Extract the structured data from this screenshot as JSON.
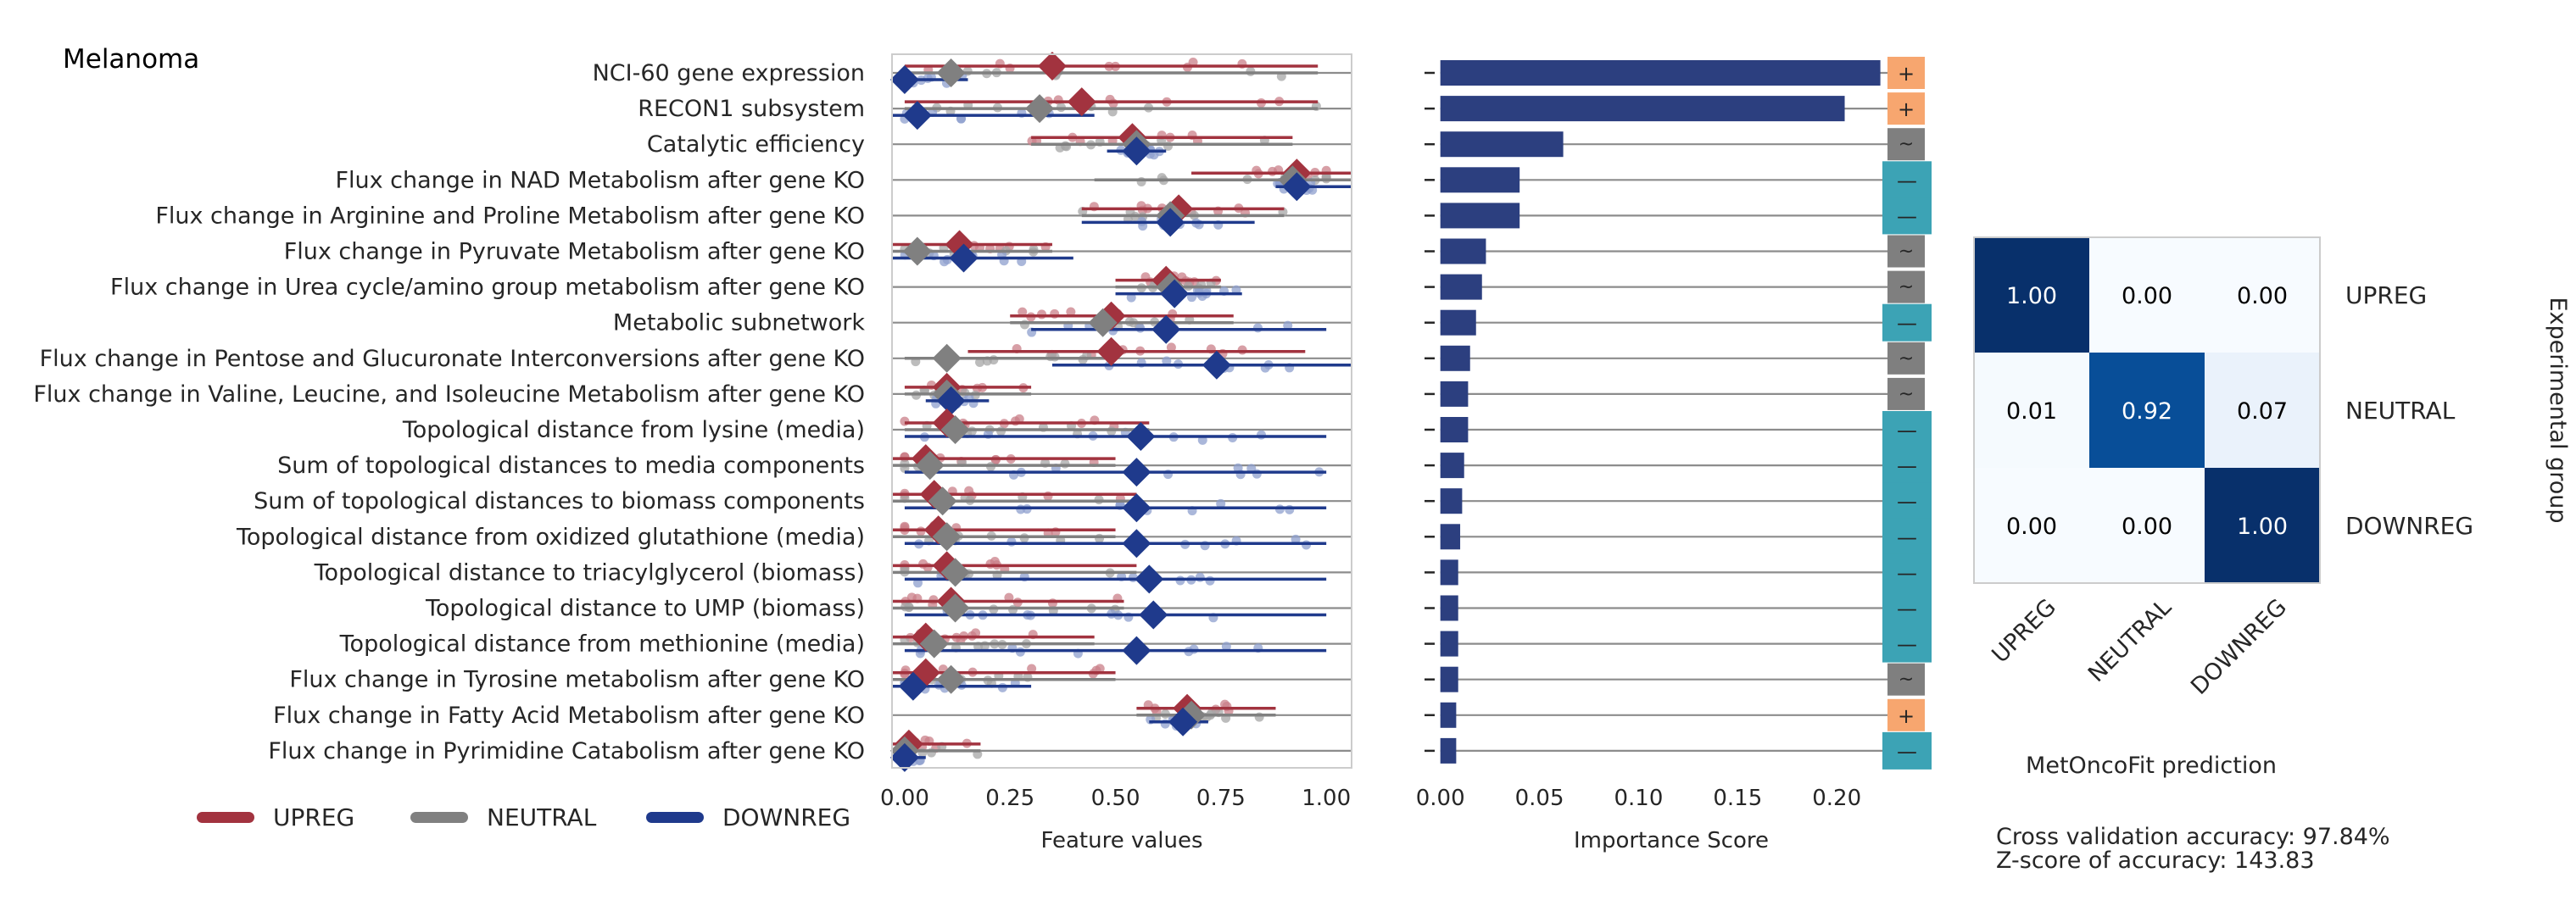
{
  "figure_title": "Melanoma",
  "legend": [
    {
      "label": "UPREG",
      "color": "#a2333f"
    },
    {
      "label": "NEUTRAL",
      "color": "#808080"
    },
    {
      "label": "DOWNREG",
      "color": "#1f3a8c"
    }
  ],
  "stats": {
    "line1": "Cross validation accuracy: 97.84%",
    "line2": "Z-score of accuracy: 143.83"
  },
  "chart_data": [
    {
      "type": "scatter",
      "title": "",
      "xlabel": "Feature values",
      "ylabel": "",
      "xlim": [
        -0.03,
        1.06
      ],
      "xticks": [
        "0.00",
        "0.25",
        "0.50",
        "0.75",
        "1.00"
      ],
      "xtick_values": [
        0,
        0.25,
        0.5,
        0.75,
        1.0
      ],
      "categories": [
        "NCI-60 gene expression",
        "RECON1 subsystem",
        "Catalytic efficiency",
        "Flux change in NAD Metabolism after gene KO",
        "Flux change in Arginine and Proline Metabolism after gene KO",
        "Flux change in Pyruvate Metabolism after gene KO",
        "Flux change in Urea cycle/amino group metabolism after gene KO",
        "Metabolic subnetwork",
        "Flux change in Pentose and Glucuronate Interconversions after gene KO",
        "Flux change in Valine, Leucine, and Isoleucine Metabolism after gene KO",
        "Topological distance from lysine (media)",
        "Sum of topological distances to media components",
        "Sum of topological distances to biomass components",
        "Topological distance from oxidized glutathione (media)",
        "Topological distance to triacylglycerol (biomass)",
        "Topological distance to UMP (biomass)",
        "Topological distance from methionine (media)",
        "Flux change in Tyrosine metabolism after gene KO",
        "Flux change in Fatty Acid Metabolism after gene KO",
        "Flux change in Pyrimidine Catabolism after gene KO"
      ],
      "series": [
        {
          "name": "UPREG",
          "color": "#a2333f",
          "means": [
            0.35,
            0.42,
            0.54,
            0.93,
            0.65,
            0.13,
            0.62,
            0.49,
            0.49,
            0.1,
            0.1,
            0.05,
            0.07,
            0.08,
            0.1,
            0.11,
            0.05,
            0.05,
            0.67,
            0.01
          ],
          "range": [
            [
              0.0,
              0.98
            ],
            [
              0.0,
              0.98
            ],
            [
              0.3,
              0.92
            ],
            [
              0.68,
              1.06
            ],
            [
              0.42,
              0.9
            ],
            [
              -0.03,
              0.35
            ],
            [
              0.5,
              0.75
            ],
            [
              0.25,
              0.78
            ],
            [
              0.15,
              0.95
            ],
            [
              0.0,
              0.3
            ],
            [
              0.0,
              0.58
            ],
            [
              -0.03,
              0.5
            ],
            [
              -0.03,
              0.55
            ],
            [
              -0.03,
              0.5
            ],
            [
              -0.03,
              0.55
            ],
            [
              -0.03,
              0.52
            ],
            [
              -0.03,
              0.45
            ],
            [
              -0.03,
              0.5
            ],
            [
              0.55,
              0.88
            ],
            [
              -0.03,
              0.18
            ]
          ]
        },
        {
          "name": "NEUTRAL",
          "color": "#808080",
          "means": [
            0.11,
            0.32,
            0.55,
            0.92,
            0.63,
            0.03,
            0.63,
            0.47,
            0.1,
            0.1,
            0.12,
            0.06,
            0.09,
            0.1,
            0.12,
            0.12,
            0.07,
            0.11,
            0.68,
            0.0
          ],
          "range": [
            [
              0.0,
              0.98
            ],
            [
              0.0,
              0.98
            ],
            [
              0.3,
              0.92
            ],
            [
              0.45,
              1.06
            ],
            [
              0.42,
              0.9
            ],
            [
              -0.03,
              0.35
            ],
            [
              0.5,
              0.75
            ],
            [
              0.25,
              0.78
            ],
            [
              0.0,
              0.5
            ],
            [
              0.0,
              0.3
            ],
            [
              0.0,
              0.58
            ],
            [
              -0.03,
              0.5
            ],
            [
              -0.03,
              0.55
            ],
            [
              -0.03,
              0.5
            ],
            [
              -0.03,
              0.55
            ],
            [
              -0.03,
              0.52
            ],
            [
              -0.03,
              0.45
            ],
            [
              -0.03,
              0.5
            ],
            [
              0.55,
              0.88
            ],
            [
              -0.03,
              0.18
            ]
          ]
        },
        {
          "name": "DOWNREG",
          "color": "#1f3a8c",
          "means": [
            0.0,
            0.03,
            0.55,
            0.93,
            0.63,
            0.14,
            0.64,
            0.62,
            0.74,
            0.11,
            0.56,
            0.55,
            0.55,
            0.55,
            0.58,
            0.59,
            0.55,
            0.02,
            0.66,
            0.0
          ],
          "range": [
            [
              -0.03,
              0.15
            ],
            [
              -0.03,
              0.45
            ],
            [
              0.48,
              0.62
            ],
            [
              0.88,
              1.06
            ],
            [
              0.42,
              0.83
            ],
            [
              -0.03,
              0.4
            ],
            [
              0.5,
              0.8
            ],
            [
              0.3,
              1.0
            ],
            [
              0.35,
              1.06
            ],
            [
              0.05,
              0.2
            ],
            [
              0.0,
              1.0
            ],
            [
              0.0,
              1.0
            ],
            [
              0.0,
              1.0
            ],
            [
              0.0,
              1.0
            ],
            [
              0.0,
              1.0
            ],
            [
              0.0,
              1.0
            ],
            [
              0.0,
              1.0
            ],
            [
              -0.03,
              0.3
            ],
            [
              0.58,
              0.72
            ],
            [
              -0.03,
              0.05
            ]
          ]
        }
      ]
    },
    {
      "type": "bar",
      "orientation": "horizontal",
      "title": "",
      "xlabel": "Importance Score",
      "ylabel": "",
      "xlim": [
        -0.002,
        0.235
      ],
      "xticks": [
        "0.00",
        "0.05",
        "0.10",
        "0.15",
        "0.20"
      ],
      "xtick_values": [
        0,
        0.05,
        0.1,
        0.15,
        0.2
      ],
      "color": "#2c3f7f",
      "values": [
        0.222,
        0.204,
        0.062,
        0.04,
        0.04,
        0.023,
        0.021,
        0.018,
        0.015,
        0.014,
        0.014,
        0.012,
        0.011,
        0.01,
        0.009,
        0.009,
        0.009,
        0.009,
        0.008,
        0.008
      ],
      "direction_markers": [
        "+",
        "+",
        "~",
        "—",
        "—",
        "~",
        "~",
        "—",
        "~",
        "~",
        "—",
        "—",
        "—",
        "—",
        "—",
        "—",
        "—",
        "~",
        "+",
        "—"
      ],
      "marker_colors": {
        "+": "#f7a66f",
        "~": "#7f7f7f",
        "—": "#3ca3b5"
      }
    },
    {
      "type": "heatmap",
      "title": "",
      "xlabel": "MetOncoFit prediction",
      "ylabel": "Experimental group",
      "x_categories": [
        "UPREG",
        "NEUTRAL",
        "DOWNREG"
      ],
      "y_categories": [
        "UPREG",
        "NEUTRAL",
        "DOWNREG"
      ],
      "values": [
        [
          1.0,
          0.0,
          0.0
        ],
        [
          0.01,
          0.92,
          0.07
        ],
        [
          0.0,
          0.0,
          1.0
        ]
      ],
      "labels": [
        [
          "1.00",
          "0.00",
          "0.00"
        ],
        [
          "0.01",
          "0.92",
          "0.07"
        ],
        [
          "0.00",
          "0.00",
          "1.00"
        ]
      ],
      "colormap": "Blues"
    }
  ]
}
